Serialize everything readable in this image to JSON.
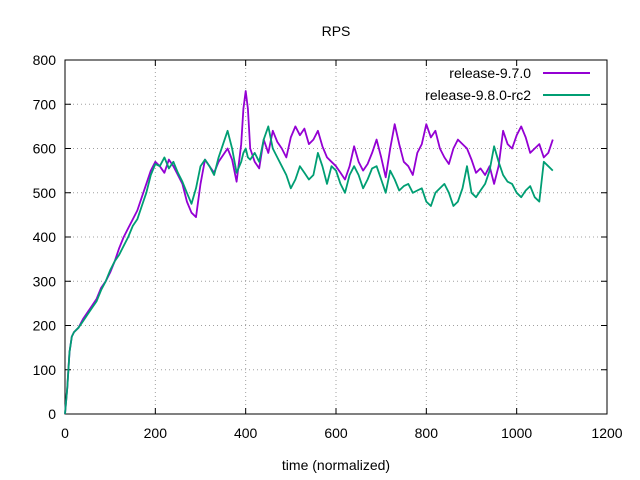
{
  "chart_data": {
    "type": "line",
    "title": "RPS",
    "xlabel": "time (normalized)",
    "ylabel": "",
    "xlim": [
      0,
      1200
    ],
    "ylim": [
      0,
      800
    ],
    "xticks": [
      0,
      200,
      400,
      600,
      800,
      1000,
      1200
    ],
    "yticks": [
      0,
      100,
      200,
      300,
      400,
      500,
      600,
      700,
      800
    ],
    "grid": true,
    "legend_position": "top-right",
    "series": [
      {
        "name": "release-9.7.0",
        "color": "#9400d3",
        "x": [
          0,
          5,
          10,
          15,
          20,
          30,
          40,
          50,
          60,
          70,
          80,
          90,
          100,
          110,
          120,
          130,
          140,
          150,
          160,
          170,
          180,
          190,
          200,
          210,
          220,
          230,
          240,
          250,
          260,
          270,
          280,
          290,
          300,
          310,
          320,
          330,
          340,
          350,
          360,
          370,
          380,
          390,
          395,
          400,
          405,
          410,
          420,
          430,
          440,
          450,
          460,
          470,
          480,
          490,
          500,
          510,
          520,
          530,
          540,
          550,
          560,
          570,
          580,
          590,
          600,
          610,
          620,
          630,
          640,
          650,
          660,
          670,
          680,
          690,
          700,
          710,
          720,
          730,
          740,
          750,
          760,
          770,
          780,
          790,
          800,
          810,
          820,
          830,
          840,
          850,
          860,
          870,
          880,
          890,
          900,
          910,
          920,
          930,
          940,
          950,
          960,
          970,
          980,
          990,
          1000,
          1010,
          1020,
          1030,
          1040,
          1050,
          1060,
          1070,
          1080
        ],
        "y": [
          0,
          60,
          140,
          175,
          185,
          195,
          215,
          230,
          245,
          260,
          285,
          300,
          320,
          345,
          375,
          400,
          420,
          440,
          460,
          490,
          520,
          550,
          570,
          560,
          545,
          575,
          560,
          540,
          520,
          480,
          455,
          445,
          520,
          575,
          560,
          545,
          570,
          585,
          600,
          575,
          525,
          610,
          690,
          730,
          690,
          600,
          570,
          555,
          620,
          590,
          640,
          615,
          600,
          580,
          625,
          650,
          630,
          645,
          610,
          620,
          640,
          605,
          580,
          570,
          560,
          545,
          530,
          560,
          605,
          570,
          550,
          565,
          590,
          620,
          580,
          535,
          600,
          655,
          610,
          570,
          560,
          540,
          590,
          610,
          655,
          625,
          640,
          600,
          580,
          565,
          600,
          620,
          610,
          600,
          575,
          545,
          555,
          540,
          560,
          520,
          560,
          640,
          610,
          600,
          630,
          650,
          625,
          590,
          600,
          610,
          580,
          590,
          620
        ]
      },
      {
        "name": "release-9.8.0-rc2",
        "color": "#009e73",
        "x": [
          0,
          5,
          10,
          15,
          20,
          30,
          40,
          50,
          60,
          70,
          80,
          90,
          100,
          110,
          120,
          130,
          140,
          150,
          160,
          170,
          180,
          190,
          200,
          210,
          220,
          230,
          240,
          250,
          260,
          270,
          280,
          290,
          300,
          310,
          320,
          330,
          340,
          350,
          360,
          370,
          380,
          390,
          395,
          400,
          405,
          410,
          420,
          430,
          440,
          450,
          460,
          470,
          480,
          490,
          500,
          510,
          520,
          530,
          540,
          550,
          560,
          570,
          580,
          590,
          600,
          610,
          620,
          630,
          640,
          650,
          660,
          670,
          680,
          690,
          700,
          710,
          720,
          730,
          740,
          750,
          760,
          770,
          780,
          790,
          800,
          810,
          820,
          830,
          840,
          850,
          860,
          870,
          880,
          890,
          900,
          910,
          920,
          930,
          940,
          950,
          960,
          970,
          980,
          990,
          1000,
          1010,
          1020,
          1030,
          1040,
          1050,
          1060,
          1070,
          1080
        ],
        "y": [
          0,
          60,
          140,
          175,
          185,
          195,
          210,
          225,
          240,
          255,
          280,
          300,
          325,
          345,
          360,
          380,
          400,
          425,
          440,
          470,
          500,
          540,
          565,
          560,
          580,
          555,
          570,
          545,
          525,
          500,
          475,
          510,
          560,
          575,
          560,
          540,
          580,
          610,
          640,
          600,
          545,
          570,
          590,
          600,
          580,
          575,
          590,
          570,
          620,
          650,
          600,
          580,
          560,
          540,
          510,
          530,
          560,
          545,
          530,
          540,
          590,
          560,
          520,
          560,
          550,
          520,
          500,
          540,
          560,
          540,
          510,
          530,
          555,
          560,
          530,
          500,
          550,
          530,
          505,
          515,
          520,
          500,
          505,
          510,
          480,
          470,
          500,
          510,
          520,
          500,
          470,
          480,
          510,
          560,
          500,
          490,
          505,
          520,
          550,
          605,
          570,
          540,
          525,
          520,
          500,
          490,
          505,
          515,
          490,
          480,
          570,
          560,
          550
        ]
      }
    ]
  }
}
